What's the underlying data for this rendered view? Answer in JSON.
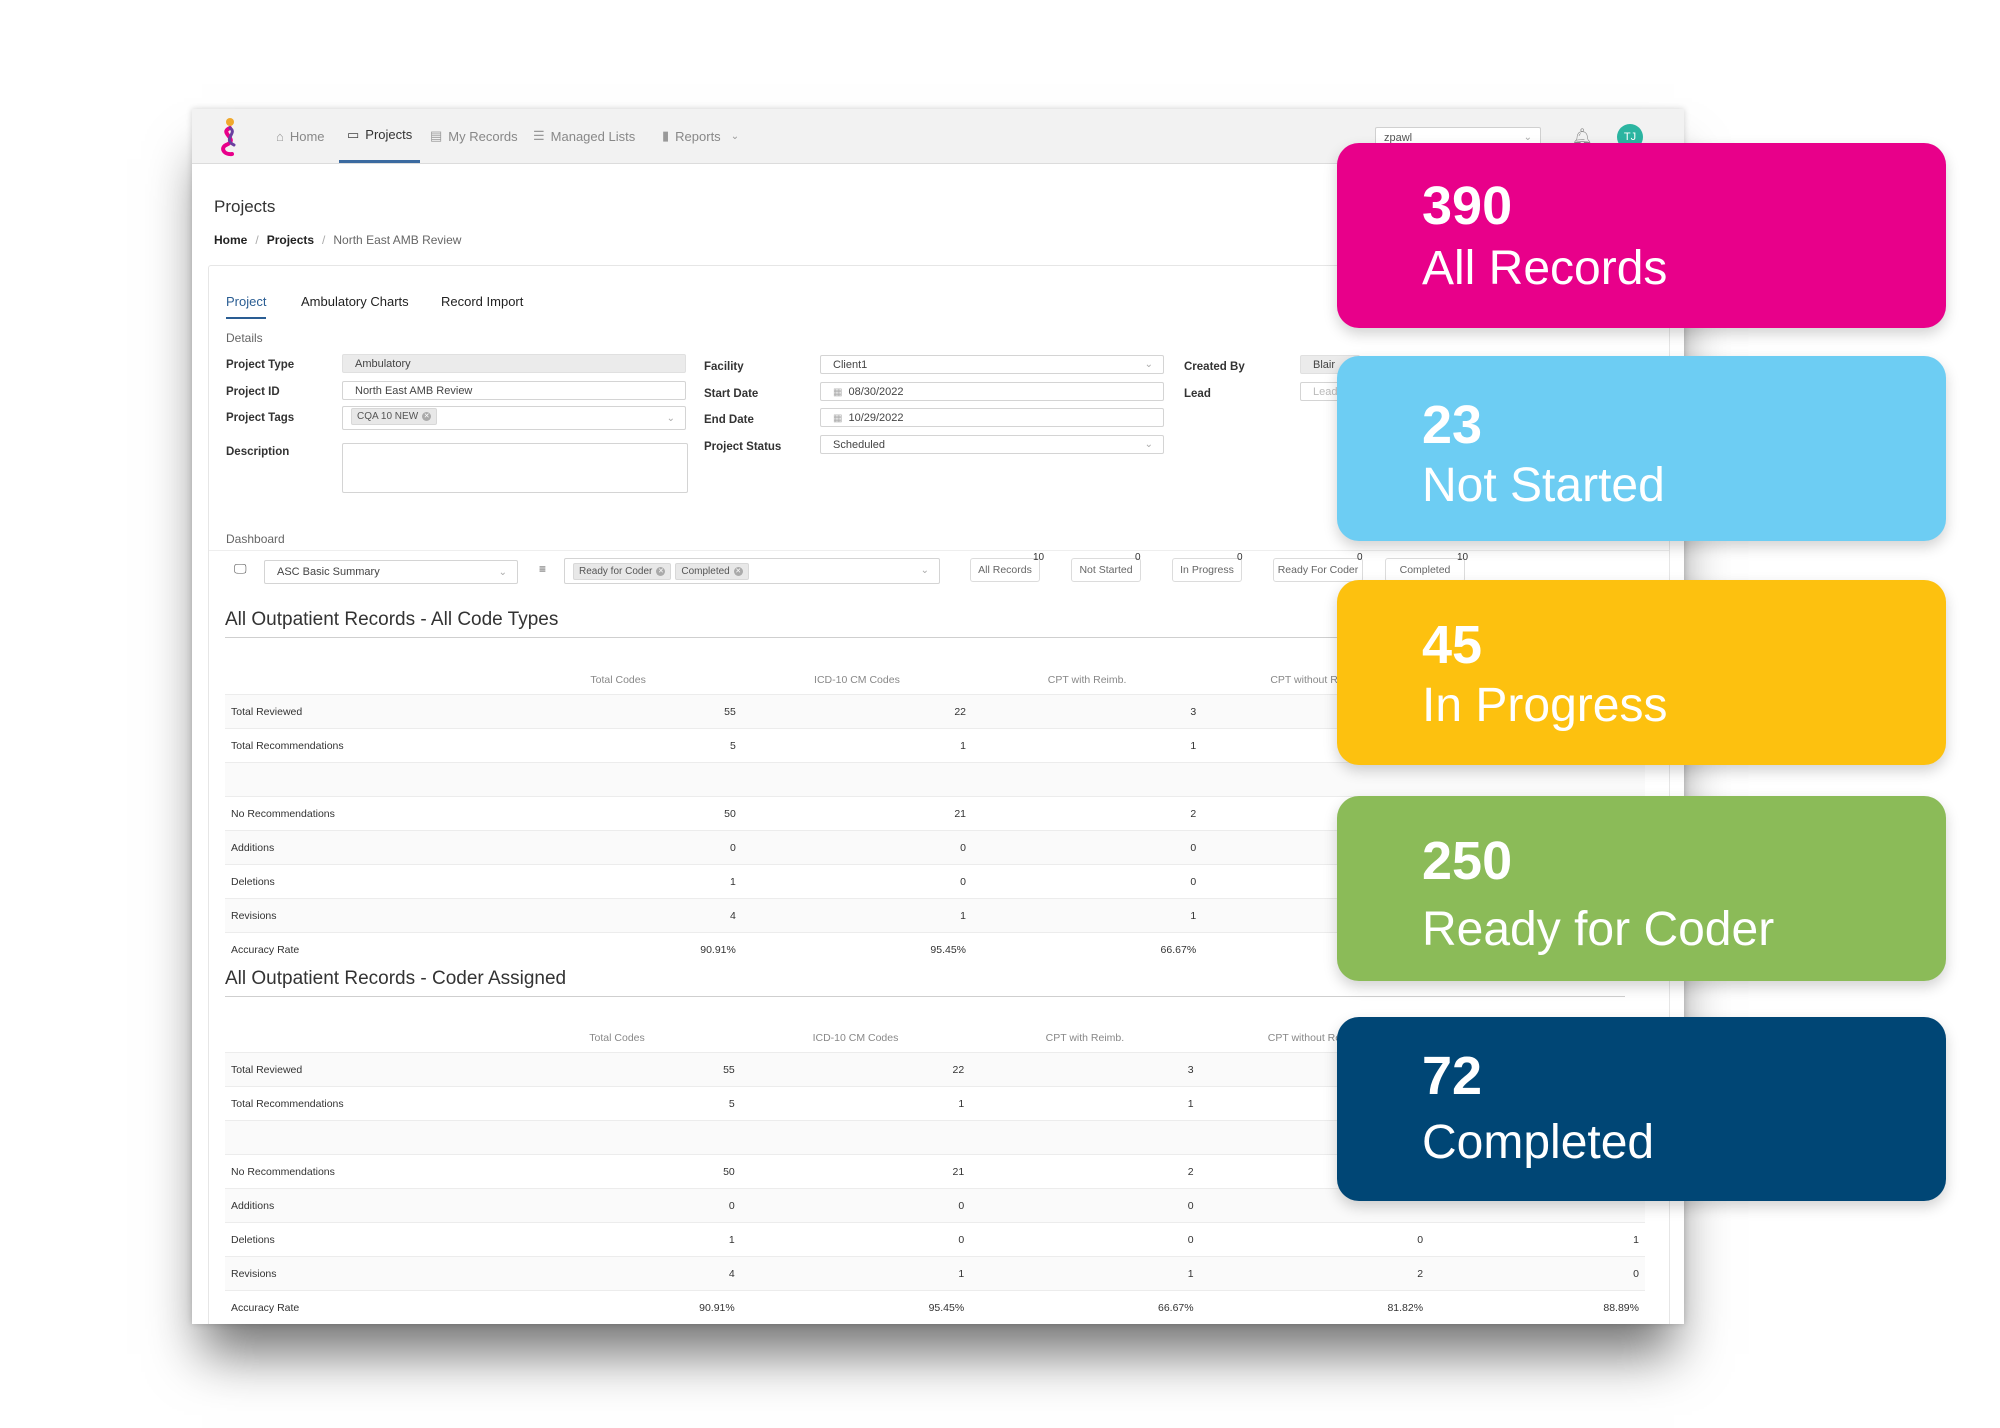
{
  "nav": {
    "items": [
      {
        "label": "Home",
        "icon": "home-icon"
      },
      {
        "label": "Projects",
        "icon": "briefcase-icon",
        "active": true
      },
      {
        "label": "My Records",
        "icon": "document-icon"
      },
      {
        "label": "Managed Lists",
        "icon": "list-icon"
      },
      {
        "label": "Reports",
        "icon": "bar-chart-icon"
      }
    ],
    "user_select": "zpawl",
    "avatar_initials": "TJ"
  },
  "page": {
    "title": "Projects",
    "breadcrumb": [
      "Home",
      "Projects",
      "North East AMB Review"
    ]
  },
  "tabs": [
    "Project",
    "Ambulatory Charts",
    "Record Import"
  ],
  "details": {
    "section_label": "Details",
    "project_type_label": "Project Type",
    "project_type": "Ambulatory",
    "project_id_label": "Project ID",
    "project_id": "North East AMB Review",
    "project_tags_label": "Project Tags",
    "project_tag": "CQA 10 NEW",
    "description_label": "Description",
    "facility_label": "Facility",
    "facility": "Client1",
    "start_date_label": "Start Date",
    "start_date": "08/30/2022",
    "end_date_label": "End Date",
    "end_date": "10/29/2022",
    "project_status_label": "Project Status",
    "project_status": "Scheduled",
    "created_by_label": "Created By",
    "created_by": "Blair",
    "lead_label": "Lead",
    "lead_placeholder": "Lead"
  },
  "dashboard": {
    "section_label": "Dashboard",
    "summary_select": "ASC Basic Summary",
    "filter_chips": [
      "Ready for Coder",
      "Completed"
    ],
    "filter_buttons": [
      {
        "label": "All Records",
        "count": "10"
      },
      {
        "label": "Not Started",
        "count": "0"
      },
      {
        "label": "In Progress",
        "count": "0"
      },
      {
        "label": "Ready For Coder",
        "count": "0"
      },
      {
        "label": "Completed",
        "count": "10"
      }
    ]
  },
  "table1": {
    "title": "All Outpatient Records - All Code Types",
    "columns": [
      "",
      "Total Codes",
      "ICD-10 CM Codes",
      "CPT with Reimb.",
      "CPT without Reimb.",
      ""
    ],
    "rows": [
      [
        "Total Reviewed",
        "55",
        "22",
        "3",
        "",
        ""
      ],
      [
        "Total Recommendations",
        "5",
        "1",
        "1",
        "",
        ""
      ],
      [
        "",
        "",
        "",
        "",
        "",
        ""
      ],
      [
        "No Recommendations",
        "50",
        "21",
        "2",
        "",
        ""
      ],
      [
        "Additions",
        "0",
        "0",
        "0",
        "",
        ""
      ],
      [
        "Deletions",
        "1",
        "0",
        "0",
        "",
        ""
      ],
      [
        "Revisions",
        "4",
        "1",
        "1",
        "",
        ""
      ],
      [
        "Accuracy Rate",
        "90.91%",
        "95.45%",
        "66.67%",
        "",
        ""
      ]
    ]
  },
  "table2": {
    "title": "All Outpatient Records - Coder Assigned",
    "columns": [
      "",
      "Total Codes",
      "ICD-10 CM Codes",
      "CPT with Reimb.",
      "CPT without Reimb.",
      ""
    ],
    "rows": [
      [
        "Total Reviewed",
        "55",
        "22",
        "3",
        "",
        ""
      ],
      [
        "Total Recommendations",
        "5",
        "1",
        "1",
        "",
        ""
      ],
      [
        "",
        "",
        "",
        "",
        "",
        ""
      ],
      [
        "No Recommendations",
        "50",
        "21",
        "2",
        "",
        ""
      ],
      [
        "Additions",
        "0",
        "0",
        "0",
        "",
        ""
      ],
      [
        "Deletions",
        "1",
        "0",
        "0",
        "0",
        "1"
      ],
      [
        "Revisions",
        "4",
        "1",
        "1",
        "2",
        "0"
      ],
      [
        "Accuracy Rate",
        "90.91%",
        "95.45%",
        "66.67%",
        "81.82%",
        "88.89%"
      ]
    ]
  },
  "stat_cards": [
    {
      "value": "390",
      "label": "All Records",
      "color": "#e8008a"
    },
    {
      "value": "23",
      "label": "Not Started",
      "color": "#6dcdf3"
    },
    {
      "value": "45",
      "label": "In Progress",
      "color": "#fdc10f"
    },
    {
      "value": "250",
      "label": "Ready for Coder",
      "color": "#8bbb58"
    },
    {
      "value": "72",
      "label": "Completed",
      "color": "#004675"
    }
  ]
}
